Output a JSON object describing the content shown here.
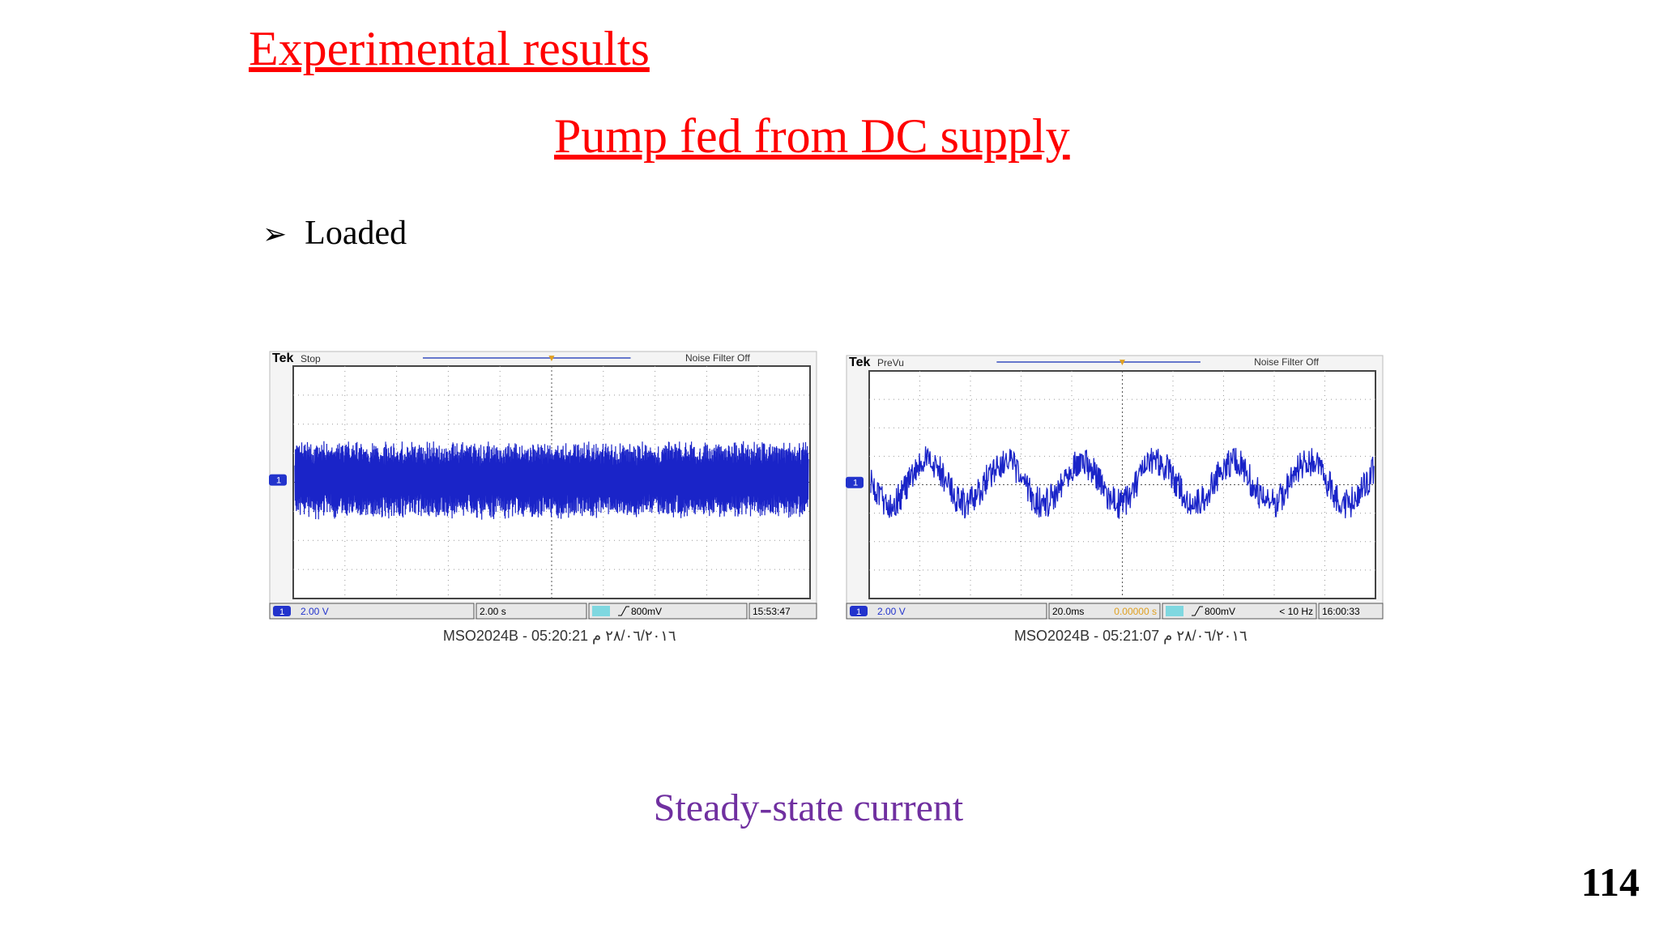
{
  "title": "Experimental results",
  "subtitle": "Pump fed from DC supply",
  "bullet": "Loaded",
  "scopes": [
    {
      "brand": "Tek",
      "mode": "Stop",
      "filter": "Noise Filter Off",
      "channel": "1",
      "scale": "2.00 V",
      "timebase": "2.00 s",
      "trigger": "800mV",
      "time": "15:53:47",
      "caption": "MSO2024B - 05:20:21 ٢٨/٠٦/٢٠١٦ م"
    },
    {
      "brand": "Tek",
      "mode": "PreVu",
      "filter": "Noise Filter Off",
      "channel": "1",
      "scale": "2.00 V",
      "timebase": "20.0ms",
      "offset": "0.00000 s",
      "trigger": "800mV",
      "frequency": "< 10 Hz",
      "time": "16:00:33",
      "caption": "MSO2024B - 05:21:07 ٢٨/٠٦/٢٠١٦ م"
    }
  ],
  "caption": "Steady-state current",
  "page_number": "114"
}
